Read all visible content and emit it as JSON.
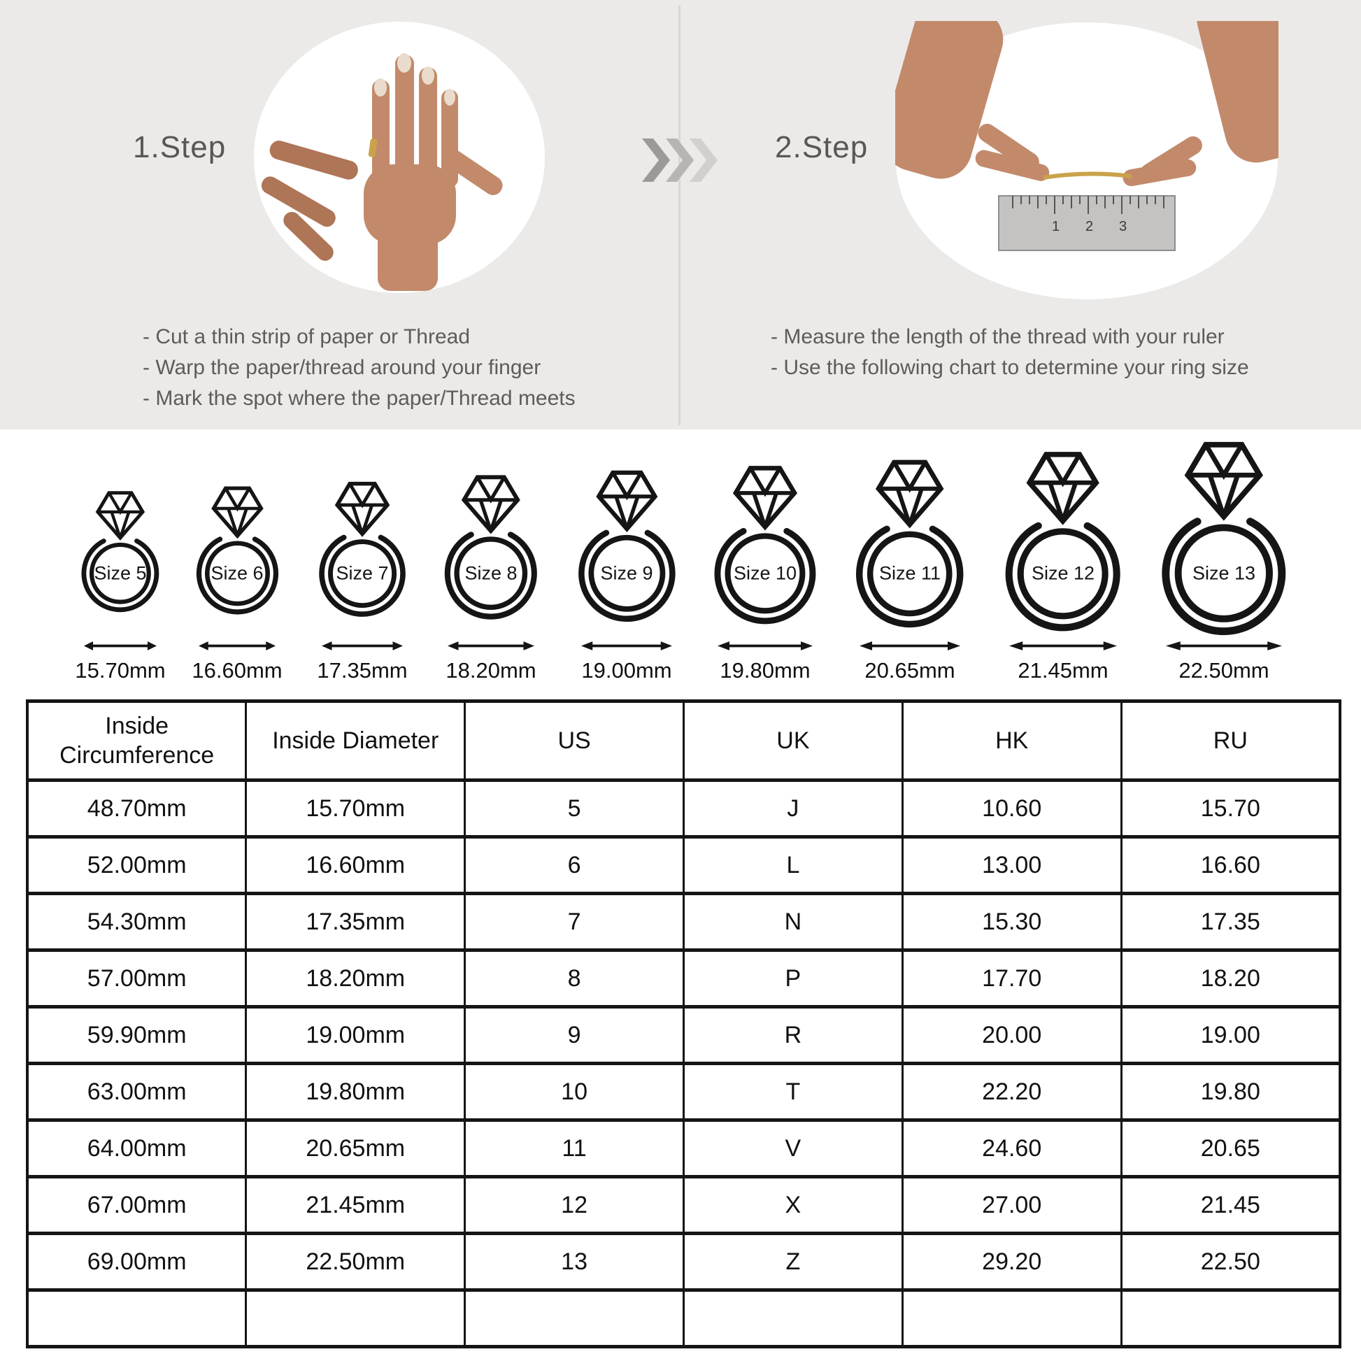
{
  "steps": [
    {
      "title": "1.Step",
      "instructions": [
        "- Cut a thin strip of paper or Thread",
        "- Warp the paper/thread around your finger",
        "- Mark the spot where the paper/Thread meets"
      ]
    },
    {
      "title": "2.Step",
      "instructions": [
        "- Measure the length of the thread with your ruler",
        "- Use the following chart to determine your ring size"
      ]
    }
  ],
  "rings": [
    {
      "size_label": "Size 5",
      "diameter": "15.70mm"
    },
    {
      "size_label": "Size 6",
      "diameter": "16.60mm"
    },
    {
      "size_label": "Size 7",
      "diameter": "17.35mm"
    },
    {
      "size_label": "Size 8",
      "diameter": "18.20mm"
    },
    {
      "size_label": "Size 9",
      "diameter": "19.00mm"
    },
    {
      "size_label": "Size 10",
      "diameter": "19.80mm"
    },
    {
      "size_label": "Size 11",
      "diameter": "20.65mm"
    },
    {
      "size_label": "Size 12",
      "diameter": "21.45mm"
    },
    {
      "size_label": "Size 13",
      "diameter": "22.50mm"
    }
  ],
  "table": {
    "headers": [
      "Inside Circumference",
      "Inside Diameter",
      "US",
      "UK",
      "HK",
      "RU"
    ],
    "rows": [
      [
        "48.70mm",
        "15.70mm",
        "5",
        "J",
        "10.60",
        "15.70"
      ],
      [
        "52.00mm",
        "16.60mm",
        "6",
        "L",
        "13.00",
        "16.60"
      ],
      [
        "54.30mm",
        "17.35mm",
        "7",
        "N",
        "15.30",
        "17.35"
      ],
      [
        "57.00mm",
        "18.20mm",
        "8",
        "P",
        "17.70",
        "18.20"
      ],
      [
        "59.90mm",
        "19.00mm",
        "9",
        "R",
        "20.00",
        "19.00"
      ],
      [
        "63.00mm",
        "19.80mm",
        "10",
        "T",
        "22.20",
        "19.80"
      ],
      [
        "64.00mm",
        "20.65mm",
        "11",
        "V",
        "24.60",
        "20.65"
      ],
      [
        "67.00mm",
        "21.45mm",
        "12",
        "X",
        "27.00",
        "21.45"
      ],
      [
        "69.00mm",
        "22.50mm",
        "13",
        "Z",
        "29.20",
        "22.50"
      ],
      [
        "",
        "",
        "",
        "",
        "",
        ""
      ]
    ]
  },
  "colors": {
    "top_background": "#ECEAE8",
    "title_text": "#595751",
    "body_text": "#5E5C57",
    "divider": "#D8D6D2",
    "ink": "#151515",
    "chevrons": [
      "#9C9A97",
      "#B7B5B2",
      "#D2D0CD"
    ],
    "skin": "#C28A6B",
    "skin_shadow": "#AE7557",
    "nail": "#EADCCD",
    "thread_gold": "#C9A24B",
    "ruler_gray": "#C4C3C1"
  }
}
